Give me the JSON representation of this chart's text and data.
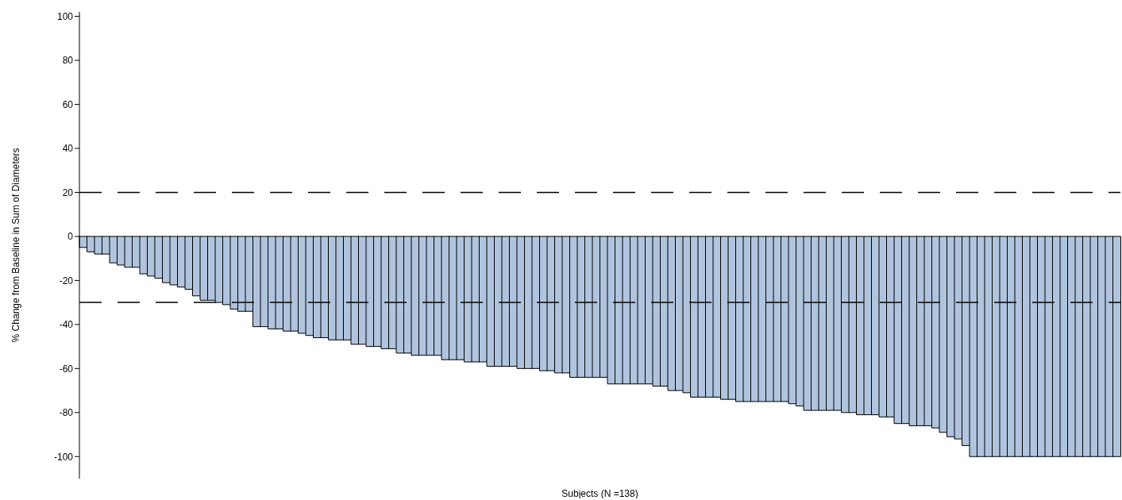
{
  "chart_data": {
    "type": "bar",
    "xlabel": "Subjects (N =138)",
    "ylabel": "% Change from Baseline in Sum of Diameters",
    "categories": [
      null,
      null,
      null,
      null,
      null,
      null,
      null,
      null,
      null,
      null,
      null,
      null,
      null,
      null,
      null,
      null,
      null,
      null,
      null,
      null,
      null,
      null,
      null,
      null,
      null,
      null,
      null,
      null,
      null,
      null,
      null,
      null,
      null,
      null,
      null,
      null,
      null,
      null,
      null,
      null,
      null,
      null,
      null,
      null,
      null,
      null,
      null,
      null,
      null,
      null,
      null,
      null,
      null,
      null,
      null,
      null,
      null,
      null,
      null,
      null,
      null,
      null,
      null,
      null,
      null,
      null,
      null,
      null,
      null,
      null,
      null,
      null,
      null,
      null,
      null,
      null,
      null,
      null,
      null,
      null,
      null,
      null,
      null,
      null,
      null,
      null,
      null,
      null,
      null,
      null,
      null,
      null,
      null,
      null,
      null,
      null,
      null,
      null,
      null,
      null,
      null,
      null,
      null,
      null,
      null,
      null,
      null,
      null,
      null,
      null,
      null,
      null,
      null,
      null,
      null,
      null,
      null,
      null,
      null,
      null,
      null,
      null,
      null,
      null,
      null,
      null,
      null,
      null,
      null,
      null,
      null,
      null,
      null,
      null,
      null,
      null,
      null,
      null
    ],
    "values": [
      -5,
      -7,
      -8,
      -8,
      -12,
      -13,
      -14,
      -14,
      -17,
      -18,
      -19,
      -21,
      -22,
      -23,
      -24,
      -27,
      -29,
      -29,
      -30,
      -31,
      -33,
      -34,
      -34,
      -41,
      -41,
      -42,
      -42,
      -43,
      -43,
      -44,
      -45,
      -46,
      -46,
      -47,
      -47,
      -47,
      -49,
      -49,
      -50,
      -50,
      -51,
      -51,
      -53,
      -53,
      -54,
      -54,
      -54,
      -54,
      -56,
      -56,
      -56,
      -57,
      -57,
      -57,
      -59,
      -59,
      -59,
      -59,
      -60,
      -60,
      -60,
      -61,
      -61,
      -62,
      -62,
      -64,
      -64,
      -64,
      -64,
      -64,
      -67,
      -67,
      -67,
      -67,
      -67,
      -67,
      -68,
      -68,
      -70,
      -70,
      -71,
      -73,
      -73,
      -73,
      -73,
      -74,
      -74,
      -75,
      -75,
      -75,
      -75,
      -75,
      -75,
      -75,
      -76,
      -77,
      -79,
      -79,
      -79,
      -79,
      -79,
      -80,
      -80,
      -81,
      -81,
      -81,
      -82,
      -82,
      -85,
      -85,
      -86,
      -86,
      -86,
      -87,
      -89,
      -91,
      -92,
      -95,
      -100,
      -100,
      -100,
      -100,
      -100,
      -100,
      -100,
      -100,
      -100,
      -100,
      -100,
      -100,
      -100,
      -100,
      -100,
      -100,
      -100,
      -100,
      -100,
      -100
    ],
    "color": "#b0c4de",
    "ylim": [
      -110,
      102
    ],
    "yticks": [
      -100,
      -80,
      -60,
      -40,
      -20,
      0,
      20,
      40,
      60,
      80,
      100
    ],
    "tick_labels": "y",
    "ref_lines": [
      {
        "axis": "y",
        "value": 20,
        "color": "#000000",
        "line_style": "dashed"
      },
      {
        "axis": "y",
        "value": -30,
        "color": "#000000",
        "line_style": "dashed"
      }
    ]
  }
}
